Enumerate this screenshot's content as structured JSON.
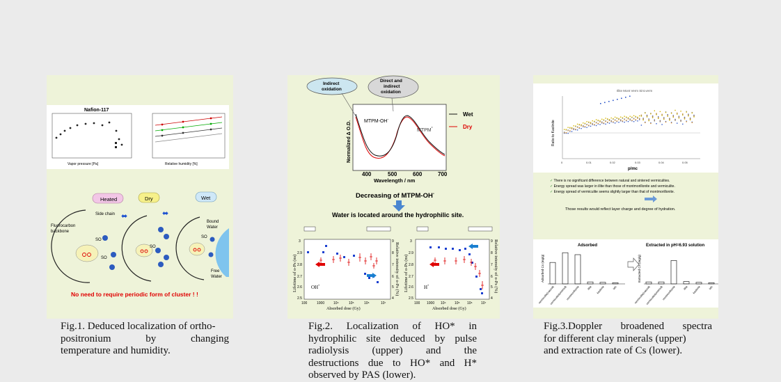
{
  "fig1": {
    "chart_title": "Nafion-117",
    "left_xlabel": "Vapor pressure [Pa]",
    "right_xlabel": "Relative humidity [%]",
    "tags": {
      "heated": "Heated",
      "dry": "Dry",
      "wet": "Wet"
    },
    "labels": {
      "side_chain": "Side chain",
      "fluorocarbon_1": "Fluorocarbon",
      "fluorocarbon_2": "backbone",
      "bound_1": "Bound",
      "bound_2": "Water",
      "free_1": "Free",
      "free_2": "Water",
      "so": "SO"
    },
    "note": "No need to require periodic form of cluster ! !",
    "caption": [
      "Fig.1. Deduced localization of ortho-",
      "positronium by changing",
      "temperature and humidity."
    ]
  },
  "fig2": {
    "bubble1": [
      "Indirect",
      "oxidation"
    ],
    "bubble2": [
      "Direct and",
      "indirect",
      "oxidation"
    ],
    "ylabel": "Normalized Δ O.D.",
    "xlabel": "Wavelength / nm",
    "xticks": [
      "400",
      "500",
      "600",
      "700"
    ],
    "legend": {
      "wet": "Wet",
      "dry": "Dry"
    },
    "label_mtpm_oh": "MTPM-OH",
    "label_mtpm": "MTPM",
    "decreasing": "Decreasing of MTPM-OH",
    "water_located": "Water is located around the hydrophilic site.",
    "left_ylabel": "Lifetime of o-Ps (ns)",
    "right_ylabel": "Relative intensity of o-Ps (%)",
    "dose_label": "Absorbed dose (Gy)",
    "oh_label": "OH",
    "h_label": "H",
    "left_yticks": [
      "3",
      "2.9",
      "2.8",
      "2.7",
      "2.6",
      "2.5"
    ],
    "right_yticks": [
      "9",
      "8",
      "7",
      "6",
      "5",
      "4"
    ],
    "dose_ticks": [
      "100",
      "1000",
      "10⁴",
      "10⁵",
      "10⁶",
      "10⁷"
    ],
    "caption": [
      "Fig.2.   Localization   of   HO*   in",
      "hydrophilic site deduced by pulse",
      "radiolysis    (upper)    and    the",
      "destructions due to HO* and H*",
      "observed by PAS (lower)."
    ]
  },
  "fig3": {
    "ylabel": "Ratio to Kaolinite",
    "xlabel": "p/mc",
    "xticks": [
      "0",
      "0.01",
      "0.02",
      "0.03",
      "0.04",
      "0.05"
    ],
    "legend_text": "Illite  Mont  Verm  Sint.verm",
    "bullets": [
      "There is no significant difference between natural and sintered vermiculites.",
      "Energy spread was larger in illite than those of montmorillonite and vermiculite.",
      "Energy spread of vermiculite seems slightly larger than that of montmorillonite."
    ],
    "conclusion": "Those results would reflect layer charge and degree of hydration.",
    "bar_left_title": "Adsorbed",
    "bar_right_title": "Extracted in pH=6.93 solution",
    "bar_left_ylabel": "Adsorbed Cs (mg/g)",
    "bar_right_ylabel": "Extracted Cs (mg/g)",
    "bar_left_values": [
      0.55,
      0.8,
      0.75,
      0.05,
      0.04,
      0.03
    ],
    "bar_right_values": [
      0.05,
      0.05,
      0.6,
      0.06,
      0.04,
      0.03
    ],
    "bar_categories": [
      "vermiculite(natural)",
      "vermiculite(sintered)",
      "montmorillonite",
      "illite",
      "kaolinite",
      "talc"
    ],
    "caption": [
      "Fig.3.Doppler    broadened    spectra",
      "for different clay minerals (upper)",
      "and extraction rate of Cs (lower)."
    ]
  }
}
